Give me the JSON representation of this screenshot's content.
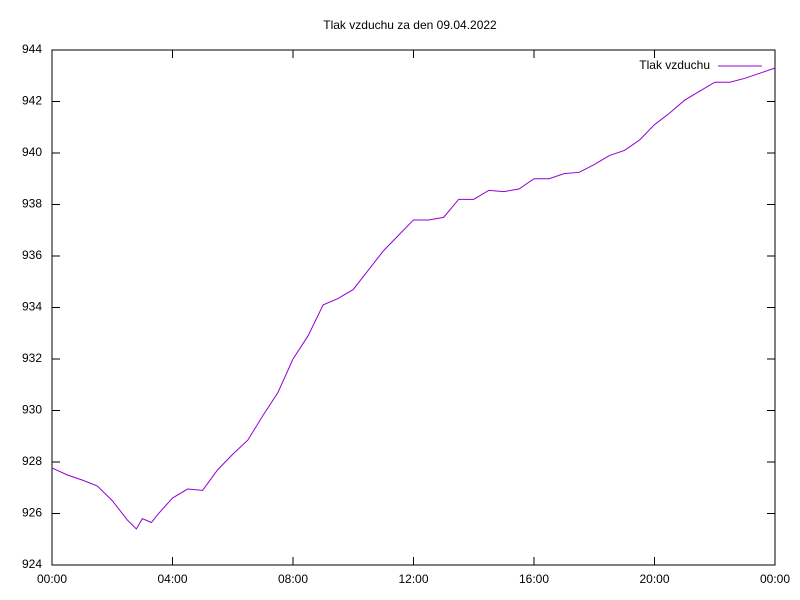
{
  "chart_data": {
    "type": "line",
    "title": "Tlak vzduchu za den 09.04.2022",
    "x": [
      0,
      0.5,
      1,
      1.5,
      2,
      2.5,
      2.8,
      3,
      3.3,
      3.5,
      4,
      4.5,
      5,
      5.5,
      6,
      6.5,
      7,
      7.5,
      8,
      8.5,
      9,
      9.5,
      10,
      10.5,
      11,
      11.5,
      12,
      12.5,
      13,
      13.5,
      14,
      14.5,
      15,
      15.5,
      16,
      16.5,
      17,
      17.5,
      18,
      18.5,
      19,
      19.5,
      20,
      20.5,
      21,
      21.5,
      22,
      22.5,
      23,
      23.5,
      24
    ],
    "series": [
      {
        "name": "Tlak vzduchu",
        "color": "#9400d3",
        "values": [
          927.77,
          927.5,
          927.3,
          927.07,
          926.5,
          925.75,
          925.4,
          925.8,
          925.65,
          925.95,
          926.6,
          926.95,
          926.9,
          927.7,
          928.3,
          928.85,
          929.8,
          930.7,
          932.0,
          932.9,
          934.1,
          934.35,
          934.7,
          935.45,
          936.2,
          936.8,
          937.4,
          937.4,
          937.5,
          938.2,
          938.2,
          938.55,
          938.5,
          938.6,
          939.0,
          939.0,
          939.2,
          939.25,
          939.55,
          939.9,
          940.1,
          940.5,
          941.1,
          941.55,
          942.05,
          942.4,
          942.75,
          942.75,
          942.9,
          943.1,
          943.3
        ]
      }
    ],
    "xlim": [
      0,
      24
    ],
    "xticks": [
      {
        "value": 0,
        "label": "00:00"
      },
      {
        "value": 4,
        "label": "04:00"
      },
      {
        "value": 8,
        "label": "08:00"
      },
      {
        "value": 12,
        "label": "12:00"
      },
      {
        "value": 16,
        "label": "16:00"
      },
      {
        "value": 20,
        "label": "20:00"
      },
      {
        "value": 24,
        "label": "00:00"
      }
    ],
    "ylim": [
      924,
      944
    ],
    "yticks": [
      924,
      926,
      928,
      930,
      932,
      934,
      936,
      938,
      940,
      942,
      944
    ],
    "legend": "top-right",
    "grid": false
  }
}
